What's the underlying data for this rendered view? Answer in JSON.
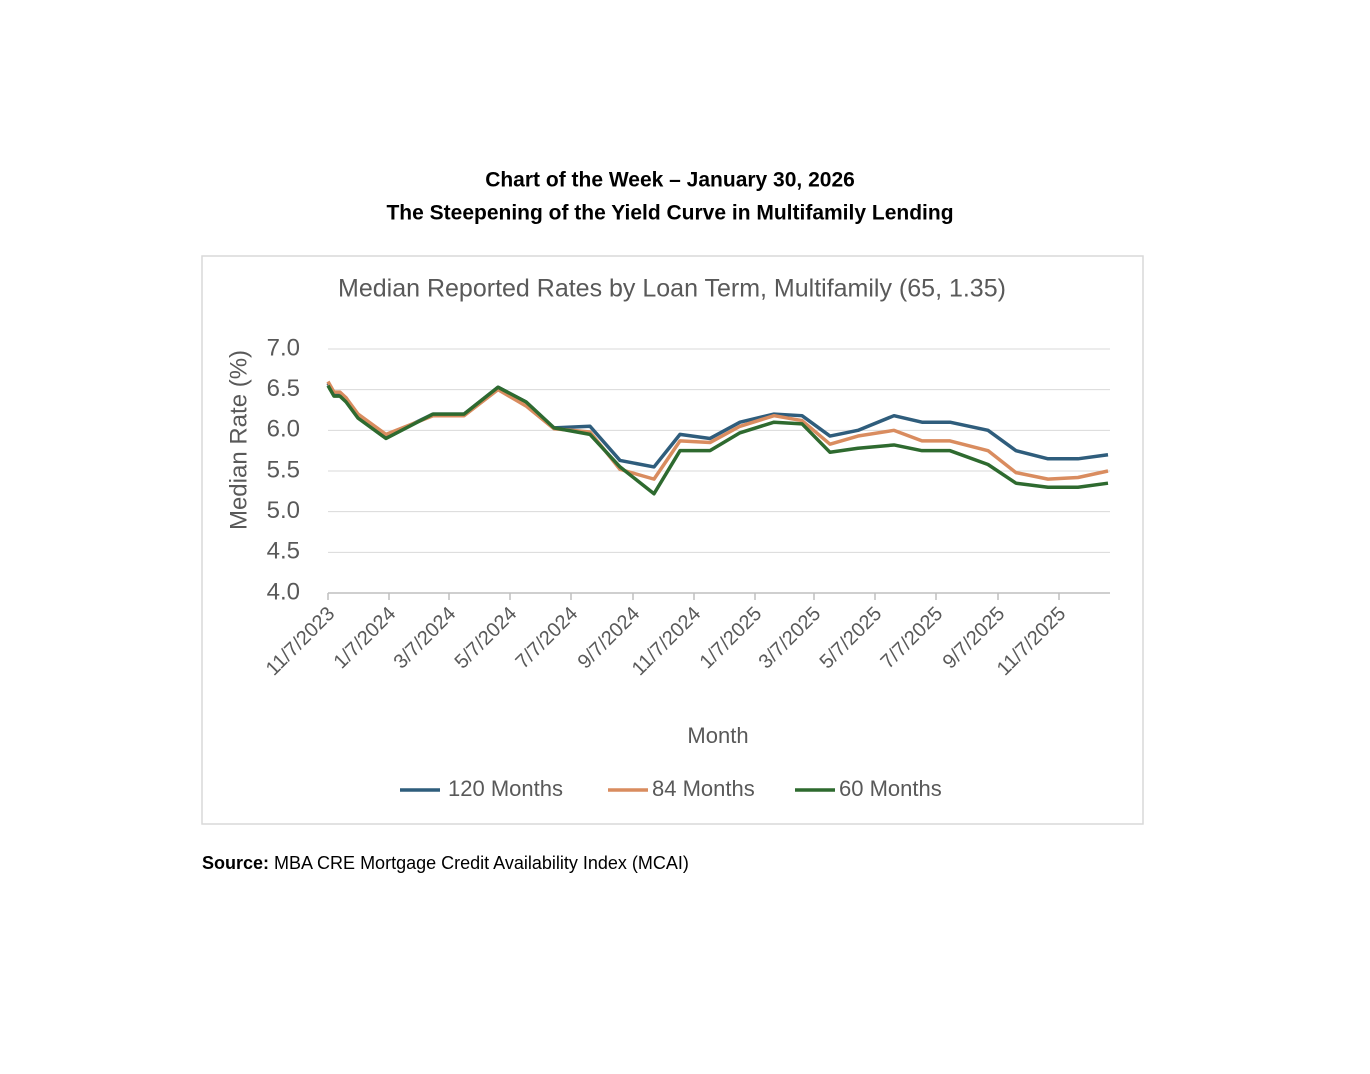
{
  "header": {
    "title": "Chart of the Week – January 30, 2026",
    "subtitle": "The Steepening of the Yield Curve in Multifamily Lending"
  },
  "source": {
    "label": "Source:",
    "text": "MBA CRE Mortgage Credit Availability Index (MCAI)"
  },
  "chart_data": {
    "type": "line",
    "title": "Median Reported Rates by Loan Term, Multifamily (65, 1.35)",
    "x_label": "Month",
    "y_label": "Median Rate (%)",
    "x": [
      "11/7/2023",
      "11/13/2023",
      "11/19/2023",
      "11/25/2023",
      "12/7/2023",
      "1/4/2024",
      "2/20/2024",
      "3/22/2024",
      "4/25/2024",
      "5/23/2024",
      "6/20/2024",
      "7/26/2024",
      "8/25/2024",
      "9/28/2024",
      "10/24/2024",
      "11/23/2024",
      "12/23/2024",
      "1/26/2025",
      "2/23/2025",
      "3/23/2025",
      "4/20/2025",
      "5/26/2025",
      "6/23/2025",
      "7/21/2025",
      "8/28/2025",
      "9/25/2025",
      "10/27/2025",
      "11/26/2025",
      "12/26/2025"
    ],
    "series": [
      {
        "name": "120 Months",
        "color": "#2f5d7c",
        "values": [
          6.58,
          6.45,
          6.45,
          6.4,
          6.17,
          5.92,
          6.2,
          6.2,
          6.53,
          6.35,
          6.03,
          6.05,
          5.63,
          5.55,
          5.95,
          5.9,
          6.1,
          6.2,
          6.18,
          5.93,
          6.0,
          6.18,
          6.1,
          6.1,
          6.0,
          5.75,
          5.65,
          5.65,
          5.7
        ]
      },
      {
        "name": "84 Months",
        "color": "#d98c5f",
        "values": [
          6.6,
          6.47,
          6.47,
          6.4,
          6.2,
          5.95,
          6.18,
          6.18,
          6.5,
          6.3,
          6.02,
          5.98,
          5.52,
          5.4,
          5.87,
          5.85,
          6.05,
          6.18,
          6.12,
          5.83,
          5.93,
          6.0,
          5.87,
          5.87,
          5.75,
          5.48,
          5.4,
          5.42,
          5.5
        ]
      },
      {
        "name": "60 Months",
        "color": "#2e6a2f",
        "values": [
          6.55,
          6.42,
          6.42,
          6.35,
          6.15,
          5.9,
          6.2,
          6.2,
          6.53,
          6.35,
          6.03,
          5.95,
          5.55,
          5.22,
          5.75,
          5.75,
          5.97,
          6.1,
          6.08,
          5.73,
          5.78,
          5.82,
          5.75,
          5.75,
          5.58,
          5.35,
          5.3,
          5.3,
          5.35
        ]
      }
    ],
    "xlim": [
      "11/7/2023",
      "12/28/2025"
    ],
    "xticks": [
      "11/7/2023",
      "1/7/2024",
      "3/7/2024",
      "5/7/2024",
      "7/7/2024",
      "9/7/2024",
      "11/7/2024",
      "1/7/2025",
      "3/7/2025",
      "5/7/2025",
      "7/7/2025",
      "9/7/2025",
      "11/7/2025"
    ],
    "ylim": [
      4,
      7
    ],
    "yticks": [
      {
        "value": 4,
        "label": "4.0"
      },
      {
        "value": 4.5,
        "label": "4.5"
      },
      {
        "value": 5,
        "label": "5.0"
      },
      {
        "value": 5.5,
        "label": "5.5"
      },
      {
        "value": 6,
        "label": "6.0"
      },
      {
        "value": 6.5,
        "label": "6.5"
      },
      {
        "value": 7,
        "label": "7.0"
      }
    ],
    "grid": true,
    "legend": "bottom"
  }
}
